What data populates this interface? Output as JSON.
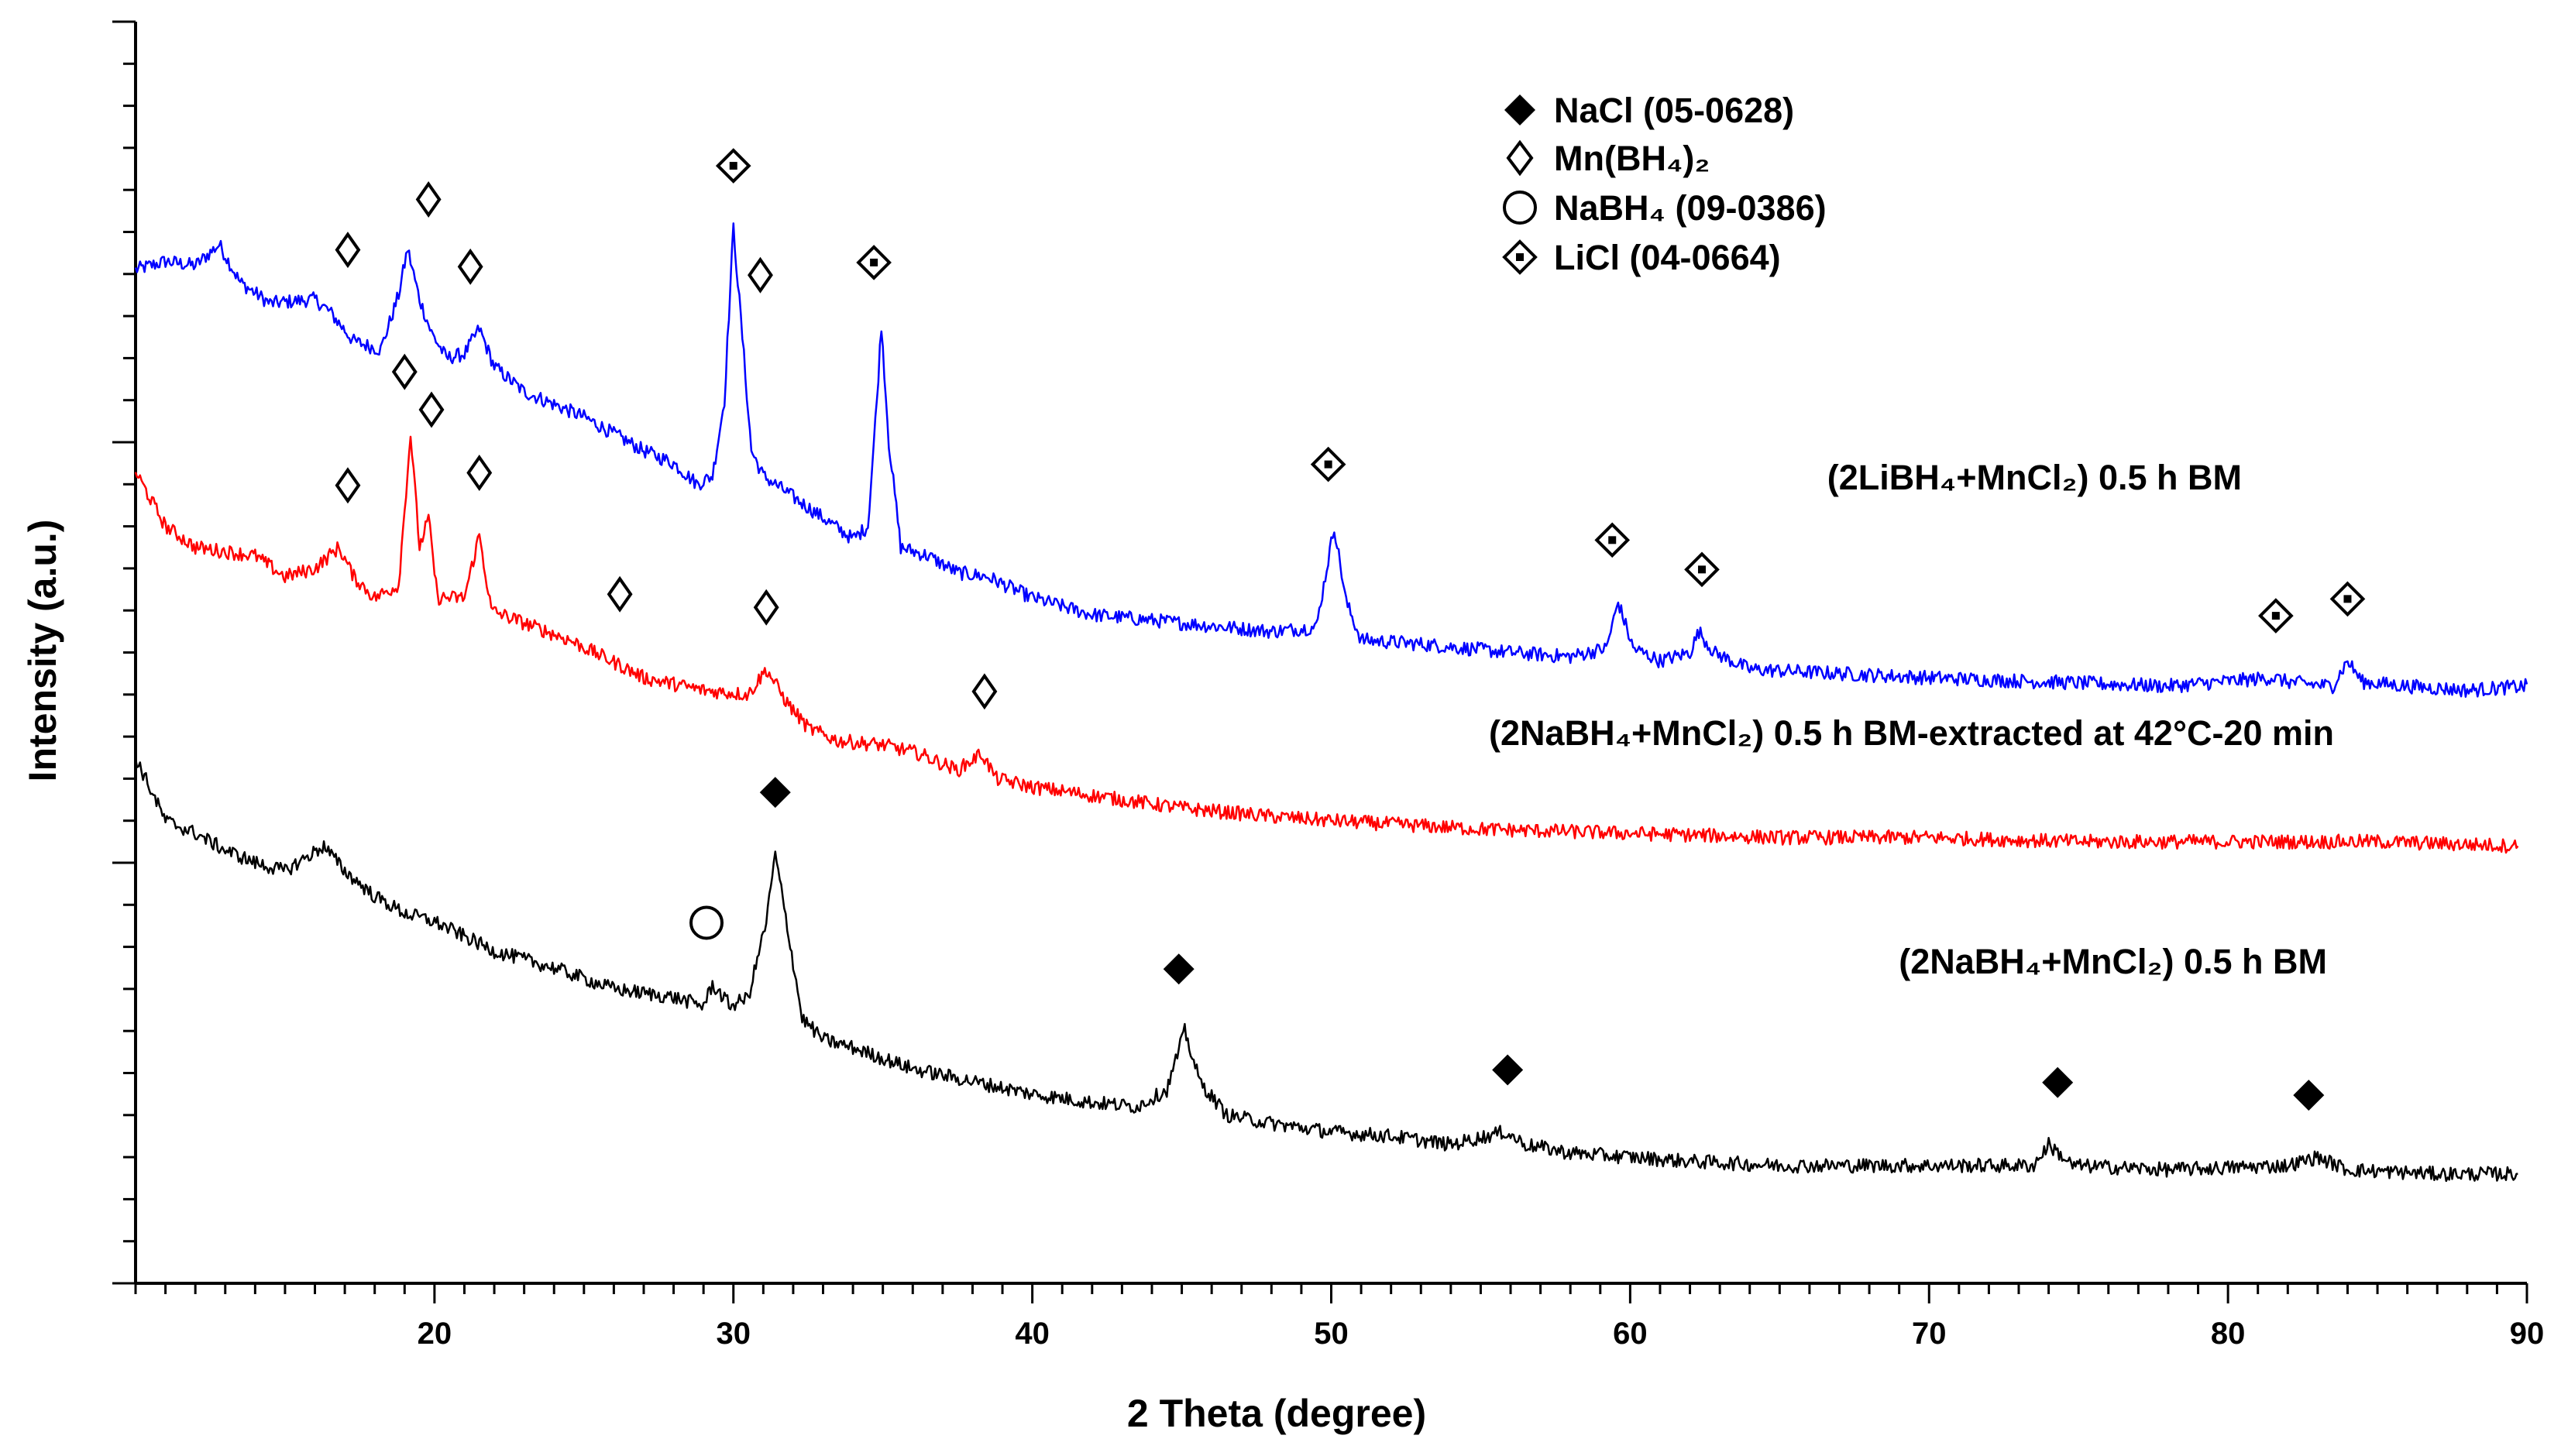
{
  "chart_data": {
    "type": "line",
    "title": "",
    "xlabel": "2 Theta (degree)",
    "ylabel": "Intensity (a.u.)",
    "xlim": [
      10,
      90
    ],
    "ylim": [
      0,
      30
    ],
    "x_ticks": [
      20,
      30,
      40,
      50,
      60,
      70,
      80,
      90
    ],
    "x_tick_labels": [
      "20",
      "30",
      "40",
      "50",
      "60",
      "70",
      "80",
      "90"
    ],
    "y_tick_labels_shown": false,
    "grid": false,
    "legend_position": "top-right",
    "legend": [
      {
        "marker": "filled-diamond",
        "label": "NaCl   (05-0628)"
      },
      {
        "marker": "open-diamond",
        "label": "Mn(BH₄)₂"
      },
      {
        "marker": "open-circle",
        "label": "NaBH₄ (09-0386)"
      },
      {
        "marker": "dotted-diamond",
        "label": "LiCl    (04-0664)"
      }
    ],
    "series": [
      {
        "name": "(2LiBH₄+MnCl₂) 0.5 h BM",
        "color": "#0000ff",
        "points": [
          [
            10,
            24.1
          ],
          [
            11,
            24.3
          ],
          [
            12,
            24.2
          ],
          [
            12.8,
            24.7
          ],
          [
            13.5,
            23.8
          ],
          [
            14.5,
            23.3
          ],
          [
            16,
            23.4
          ],
          [
            16.5,
            23.1
          ],
          [
            17.3,
            22.4
          ],
          [
            18.2,
            22.2
          ],
          [
            18.8,
            23.5
          ],
          [
            19.1,
            24.6
          ],
          [
            19.5,
            23.4
          ],
          [
            19.9,
            22.6
          ],
          [
            20.4,
            22.0
          ],
          [
            21.0,
            22.1
          ],
          [
            21.5,
            22.7
          ],
          [
            22.0,
            21.8
          ],
          [
            23.0,
            21.2
          ],
          [
            24.0,
            20.9
          ],
          [
            25.0,
            20.6
          ],
          [
            26.0,
            20.2
          ],
          [
            27.0,
            19.8
          ],
          [
            28.0,
            19.5
          ],
          [
            28.8,
            19.0
          ],
          [
            29.3,
            19.2
          ],
          [
            29.7,
            21.0
          ],
          [
            30.0,
            25.1
          ],
          [
            30.3,
            22.5
          ],
          [
            30.6,
            19.8
          ],
          [
            31.0,
            19.2
          ],
          [
            32.0,
            18.7
          ],
          [
            33.0,
            18.2
          ],
          [
            34.0,
            17.7
          ],
          [
            34.5,
            18.0
          ],
          [
            34.8,
            21.0
          ],
          [
            34.95,
            22.8
          ],
          [
            35.2,
            20.0
          ],
          [
            35.6,
            17.5
          ],
          [
            36.5,
            17.3
          ],
          [
            37.5,
            16.9
          ],
          [
            38.5,
            16.8
          ],
          [
            40,
            16.3
          ],
          [
            42,
            15.9
          ],
          [
            45,
            15.7
          ],
          [
            48,
            15.5
          ],
          [
            49.5,
            15.6
          ],
          [
            50.1,
            18.0
          ],
          [
            50.5,
            16.2
          ],
          [
            51,
            15.3
          ],
          [
            53,
            15.2
          ],
          [
            56,
            15.0
          ],
          [
            58,
            14.9
          ],
          [
            59.2,
            15.1
          ],
          [
            59.6,
            16.2
          ],
          [
            60.1,
            15.1
          ],
          [
            61,
            14.8
          ],
          [
            62.0,
            15.0
          ],
          [
            62.3,
            15.5
          ],
          [
            62.8,
            15.0
          ],
          [
            64,
            14.6
          ],
          [
            67,
            14.5
          ],
          [
            70,
            14.4
          ],
          [
            74,
            14.3
          ],
          [
            78,
            14.2
          ],
          [
            81.5,
            14.4
          ],
          [
            82,
            14.3
          ],
          [
            83.5,
            14.2
          ],
          [
            84.0,
            14.8
          ],
          [
            84.5,
            14.3
          ],
          [
            86,
            14.2
          ],
          [
            88,
            14.1
          ],
          [
            90,
            14.2
          ]
        ]
      },
      {
        "name": "(2NaBH₄+MnCl₂) 0.5 h BM-extracted at 42°C-20 min",
        "color": "#ff0000",
        "points": [
          [
            10,
            19.3
          ],
          [
            11,
            18.0
          ],
          [
            12,
            17.5
          ],
          [
            13,
            17.4
          ],
          [
            14,
            17.3
          ],
          [
            15,
            16.8
          ],
          [
            16,
            17.0
          ],
          [
            16.8,
            17.5
          ],
          [
            17.3,
            16.8
          ],
          [
            18.0,
            16.3
          ],
          [
            18.8,
            16.6
          ],
          [
            19.2,
            20.2
          ],
          [
            19.5,
            17.5
          ],
          [
            19.8,
            18.2
          ],
          [
            20.1,
            16.3
          ],
          [
            21.0,
            16.3
          ],
          [
            21.5,
            17.8
          ],
          [
            21.9,
            16.0
          ],
          [
            23,
            15.7
          ],
          [
            24.5,
            15.3
          ],
          [
            26.2,
            14.7
          ],
          [
            27,
            14.4
          ],
          [
            29,
            14.1
          ],
          [
            30.5,
            14.0
          ],
          [
            31.1,
            14.6
          ],
          [
            31.8,
            13.8
          ],
          [
            32.5,
            13.2
          ],
          [
            33.5,
            12.9
          ],
          [
            35,
            12.8
          ],
          [
            36.2,
            12.6
          ],
          [
            37.5,
            12.2
          ],
          [
            38.3,
            12.6
          ],
          [
            38.8,
            12.0
          ],
          [
            40,
            11.8
          ],
          [
            42,
            11.6
          ],
          [
            45,
            11.3
          ],
          [
            48,
            11.1
          ],
          [
            50,
            11.0
          ],
          [
            55,
            10.8
          ],
          [
            60,
            10.7
          ],
          [
            65,
            10.6
          ],
          [
            70,
            10.6
          ],
          [
            75,
            10.5
          ],
          [
            80,
            10.5
          ],
          [
            85,
            10.5
          ],
          [
            89.7,
            10.4
          ]
        ]
      },
      {
        "name": "(2NaBH₄+MnCl₂) 0.5 h BM",
        "color": "#000000",
        "points": [
          [
            10,
            12.5
          ],
          [
            11,
            11.0
          ],
          [
            12,
            10.7
          ],
          [
            13,
            10.3
          ],
          [
            14,
            10.0
          ],
          [
            15,
            9.8
          ],
          [
            16.3,
            10.4
          ],
          [
            17,
            9.8
          ],
          [
            18,
            9.2
          ],
          [
            19,
            8.8
          ],
          [
            20,
            8.6
          ],
          [
            22,
            7.9
          ],
          [
            24,
            7.5
          ],
          [
            26,
            7.0
          ],
          [
            28,
            6.8
          ],
          [
            29,
            6.6
          ],
          [
            29.3,
            7.1
          ],
          [
            29.9,
            6.6
          ],
          [
            30.5,
            6.8
          ],
          [
            31.1,
            8.6
          ],
          [
            31.4,
            10.2
          ],
          [
            31.8,
            8.5
          ],
          [
            32.3,
            6.3
          ],
          [
            33,
            5.8
          ],
          [
            34,
            5.6
          ],
          [
            36,
            5.1
          ],
          [
            38,
            4.8
          ],
          [
            40,
            4.5
          ],
          [
            42,
            4.3
          ],
          [
            43.5,
            4.2
          ],
          [
            44.5,
            4.6
          ],
          [
            45.1,
            6.0
          ],
          [
            45.6,
            4.8
          ],
          [
            46.5,
            4.0
          ],
          [
            48,
            3.8
          ],
          [
            50,
            3.6
          ],
          [
            52,
            3.5
          ],
          [
            54,
            3.3
          ],
          [
            55.8,
            3.6
          ],
          [
            56.5,
            3.3
          ],
          [
            58,
            3.1
          ],
          [
            60,
            3.0
          ],
          [
            62,
            2.9
          ],
          [
            65,
            2.8
          ],
          [
            70,
            2.8
          ],
          [
            73.5,
            2.8
          ],
          [
            74.0,
            3.3
          ],
          [
            74.8,
            2.8
          ],
          [
            78,
            2.7
          ],
          [
            82,
            2.8
          ],
          [
            83.0,
            3.0
          ],
          [
            84,
            2.7
          ],
          [
            87,
            2.6
          ],
          [
            89.7,
            2.6
          ]
        ]
      }
    ],
    "phase_markers": [
      {
        "phase": "Mn(BH₄)₂",
        "series": "(2LiBH₄+MnCl₂) 0.5 h BM",
        "x": [
          17.1,
          19.8,
          21.2,
          30.9
        ]
      },
      {
        "phase": "Mn(BH₄)₂",
        "series": "(2NaBH₄+MnCl₂) 0.5 h BM-extracted at 42°C-20 min",
        "x": [
          17.1,
          19.0,
          19.9,
          21.5,
          26.2,
          31.1,
          38.4
        ]
      },
      {
        "phase": "LiCl",
        "series": "(2LiBH₄+MnCl₂) 0.5 h BM",
        "x": [
          30.0,
          34.7,
          49.9,
          59.4,
          62.4,
          81.6,
          84.0
        ]
      },
      {
        "phase": "NaCl",
        "series": "(2NaBH₄+MnCl₂) 0.5 h BM",
        "x": [
          31.4,
          44.9,
          55.9,
          74.3,
          82.7
        ]
      },
      {
        "phase": "NaBH₄",
        "series": "(2NaBH₄+MnCl₂) 0.5 h BM",
        "x": [
          29.1
        ]
      }
    ]
  }
}
